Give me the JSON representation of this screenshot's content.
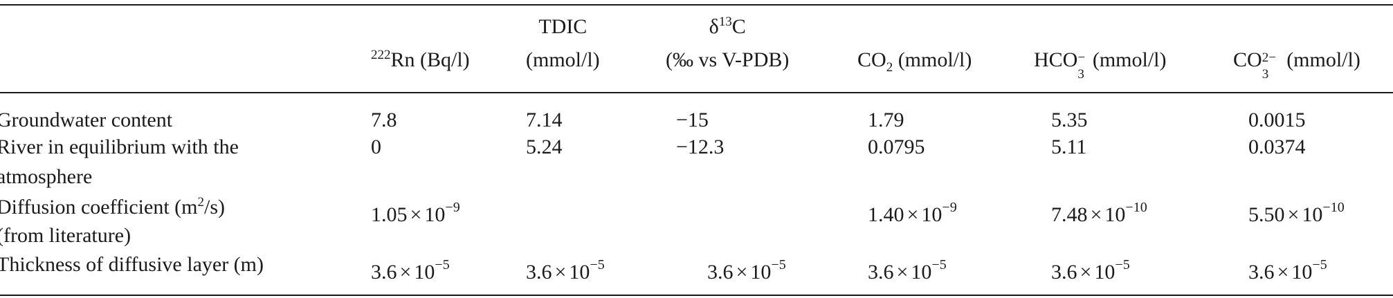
{
  "table": {
    "headers": {
      "rn": {
        "prefix": "222",
        "text": "Rn (Bq/l)"
      },
      "tdic": {
        "line1": "TDIC",
        "line2": "(mmol/l)"
      },
      "d13c": {
        "line1_pre": "δ",
        "line1_sup": "13",
        "line1_post": "C",
        "line2": "(‰ vs V-PDB)"
      },
      "co2": {
        "pre": "CO",
        "sub": "2",
        "post": " (mmol/l)"
      },
      "hco3": {
        "pre": "HCO",
        "sup": "−",
        "sub": "3",
        "post": " (mmol/l)"
      },
      "co3": {
        "pre": "CO",
        "sup": "2−",
        "sub": "3",
        "post": " (mmol/l)"
      }
    },
    "rows": [
      {
        "label_lines": [
          "Groundwater content"
        ],
        "values": [
          "7.8",
          "7.14",
          "−15",
          "1.79",
          "5.35",
          "0.0015"
        ]
      },
      {
        "label_lines": [
          "River in equilibrium with the",
          "atmosphere"
        ],
        "values": [
          "0",
          "5.24",
          "−12.3",
          "0.0795",
          "5.11",
          "0.0374"
        ]
      },
      {
        "label_pre": "Diffusion coefficient (m",
        "label_sup": "2",
        "label_post": "/s)",
        "label_line2": "(from literature)",
        "sci": [
          {
            "mant": "1.05",
            "base": "10",
            "exp": "−9"
          },
          null,
          null,
          {
            "mant": "1.40",
            "base": "10",
            "exp": "−9"
          },
          {
            "mant": "7.48",
            "base": "10",
            "exp": "−10"
          },
          {
            "mant": "5.50",
            "base": "10",
            "exp": "−10"
          }
        ]
      },
      {
        "label_lines": [
          "Thickness of diffusive layer (m)"
        ],
        "sci": [
          {
            "mant": "3.6",
            "base": "10",
            "exp": "−5"
          },
          {
            "mant": "3.6",
            "base": "10",
            "exp": "−5"
          },
          {
            "mant": "3.6",
            "base": "10",
            "exp": "−5"
          },
          {
            "mant": "3.6",
            "base": "10",
            "exp": "−5"
          },
          {
            "mant": "3.6",
            "base": "10",
            "exp": "−5"
          },
          {
            "mant": "3.6",
            "base": "10",
            "exp": "−5"
          }
        ]
      }
    ],
    "times_symbol": "×"
  }
}
